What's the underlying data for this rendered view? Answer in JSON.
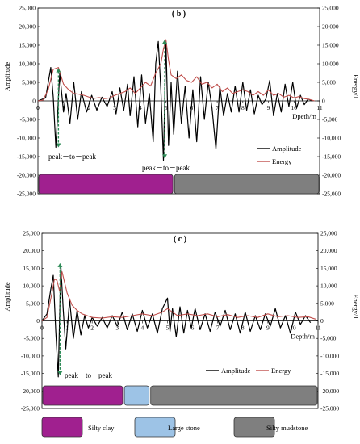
{
  "chart_data": [
    {
      "panel": "(b)",
      "type": "line",
      "title": "( b )",
      "xlabel": "Dpeth/m",
      "ylabel": "Amplitude",
      "y2label": "Energy/J",
      "xlim": [
        0,
        11
      ],
      "ylim": [
        -25000,
        25000
      ],
      "y2lim": [
        -25000,
        25000
      ],
      "xticks": [
        0,
        1,
        2,
        3,
        4,
        5,
        6,
        7,
        8,
        9,
        10,
        11
      ],
      "yticks": [
        -25000,
        -20000,
        -15000,
        -10000,
        -5000,
        0,
        5000,
        10000,
        15000,
        20000,
        25000
      ],
      "ytick_labels": [
        "-25,000",
        "-20,000",
        "-15,000",
        "-10,000",
        "-5,000",
        "0",
        "5,000",
        "10,000",
        "15,000",
        "20,000",
        "25,000"
      ],
      "series": [
        {
          "name": "Amplitude",
          "color": "#000000",
          "x": [
            0,
            0.3,
            0.5,
            0.6,
            0.7,
            0.85,
            1.0,
            1.1,
            1.25,
            1.4,
            1.55,
            1.7,
            1.9,
            2.1,
            2.3,
            2.5,
            2.7,
            2.9,
            3.05,
            3.2,
            3.35,
            3.5,
            3.6,
            3.75,
            3.9,
            4.05,
            4.2,
            4.35,
            4.5,
            4.6,
            4.7,
            4.8,
            4.9,
            5.0,
            5.1,
            5.2,
            5.3,
            5.45,
            5.6,
            5.75,
            5.9,
            6.05,
            6.2,
            6.35,
            6.5,
            6.65,
            6.8,
            6.95,
            7.1,
            7.25,
            7.4,
            7.55,
            7.7,
            7.85,
            8.0,
            8.15,
            8.3,
            8.45,
            8.6,
            8.75,
            8.9,
            9.05,
            9.2,
            9.35,
            9.5,
            9.65,
            9.8,
            9.95,
            10.1,
            10.25,
            10.4,
            10.55,
            10.7
          ],
          "values": [
            0,
            800,
            9000,
            1000,
            -12500,
            7500,
            -3000,
            2000,
            -6000,
            5000,
            -5000,
            2500,
            -3000,
            1500,
            -2500,
            1000,
            -1500,
            2500,
            -3500,
            3500,
            -2500,
            4500,
            -4000,
            6500,
            -7000,
            7000,
            -6000,
            2000,
            -11000,
            10000,
            16000,
            3000,
            -16000,
            16000,
            -12000,
            5000,
            -9000,
            8000,
            -6000,
            4000,
            -10000,
            3000,
            -11000,
            6500,
            -5000,
            5000,
            -2000,
            -13000,
            4000,
            -4000,
            2000,
            -3000,
            4000,
            -3000,
            5000,
            -2500,
            3000,
            -3500,
            1500,
            -1000,
            500,
            5500,
            -4000,
            2000,
            -3000,
            4500,
            -1500,
            5000,
            -2000,
            1500,
            -1000,
            500,
            0
          ]
        },
        {
          "name": "Energy",
          "color": "#c0504d",
          "x": [
            0,
            0.2,
            0.4,
            0.6,
            0.8,
            1.0,
            1.2,
            1.4,
            1.6,
            1.8,
            2.0,
            2.2,
            2.4,
            2.6,
            2.8,
            3.0,
            3.2,
            3.4,
            3.6,
            3.8,
            4.0,
            4.2,
            4.4,
            4.6,
            4.8,
            4.9,
            5.0,
            5.1,
            5.2,
            5.4,
            5.6,
            5.8,
            6.0,
            6.2,
            6.4,
            6.6,
            6.8,
            7.0,
            7.2,
            7.4,
            7.6,
            7.8,
            8.0,
            8.2,
            8.4,
            8.6,
            8.8,
            9.0,
            9.2,
            9.4,
            9.6,
            9.8,
            10.0,
            10.2,
            10.4,
            10.6,
            10.8
          ],
          "values": [
            0,
            200,
            3000,
            8500,
            9000,
            4500,
            3000,
            2000,
            1800,
            1500,
            1000,
            700,
            900,
            600,
            800,
            1500,
            2000,
            2500,
            3500,
            2000,
            3500,
            5000,
            4000,
            7500,
            10000,
            14000,
            16500,
            11000,
            7000,
            6000,
            7000,
            5500,
            5000,
            6500,
            4500,
            5000,
            3500,
            4500,
            2500,
            3500,
            2000,
            2500,
            3000,
            2500,
            1500,
            2500,
            1500,
            3000,
            1500,
            2000,
            1000,
            1500,
            800,
            1200,
            600,
            400,
            0
          ]
        }
      ],
      "annotations": [
        "peak－to－peak",
        "peak－to－peak"
      ],
      "layers": [
        {
          "name": "Silty clay",
          "color": "#a0208f",
          "from": 0,
          "to": 5.3
        },
        {
          "name": "Silty mudstone",
          "color": "#7f7f7f",
          "from": 5.3,
          "to": 11
        }
      ],
      "legend": "bottom-right",
      "grid": false
    },
    {
      "panel": "(c)",
      "type": "line",
      "title": "( c )",
      "xlabel": "Depth/m",
      "ylabel": "Amplitude",
      "y2label": "Energy/J",
      "xlim": [
        0,
        11
      ],
      "ylim": [
        -25000,
        25000
      ],
      "y2lim": [
        -25000,
        25000
      ],
      "xticks": [
        0,
        1,
        2,
        3,
        4,
        5,
        6,
        7,
        8,
        9,
        10,
        11
      ],
      "yticks": [
        -25000,
        -20000,
        -15000,
        -10000,
        -5000,
        0,
        5000,
        10000,
        15000,
        20000,
        25000
      ],
      "ytick_labels": [
        "-25,000",
        "-20,000",
        "-15,000",
        "-10,000",
        "-5,000",
        "0",
        "5,000",
        "10,000",
        "15,000",
        "20,000",
        "25,000"
      ],
      "series": [
        {
          "name": "Amplitude",
          "color": "#000000",
          "x": [
            0,
            0.2,
            0.35,
            0.45,
            0.55,
            0.65,
            0.75,
            0.85,
            0.95,
            1.1,
            1.25,
            1.4,
            1.55,
            1.7,
            1.85,
            2.0,
            2.2,
            2.4,
            2.6,
            2.8,
            3.0,
            3.2,
            3.4,
            3.6,
            3.8,
            4.0,
            4.2,
            4.4,
            4.6,
            4.8,
            5.0,
            5.1,
            5.2,
            5.35,
            5.5,
            5.65,
            5.8,
            5.95,
            6.1,
            6.3,
            6.5,
            6.7,
            6.9,
            7.1,
            7.3,
            7.5,
            7.7,
            7.9,
            8.1,
            8.3,
            8.5,
            8.7,
            8.9,
            9.1,
            9.3,
            9.5,
            9.7,
            9.9,
            10.1,
            10.3,
            10.5,
            10.7
          ],
          "values": [
            0,
            2000,
            9000,
            13000,
            -3000,
            -16000,
            16000,
            3000,
            -8000,
            6000,
            -5000,
            3000,
            -4000,
            1500,
            -2000,
            1000,
            -1500,
            1000,
            -2000,
            1500,
            -1500,
            2500,
            -2500,
            2000,
            -3000,
            3000,
            -2000,
            2000,
            -3500,
            3500,
            6500,
            -3000,
            3500,
            -4500,
            4000,
            -3500,
            3000,
            -2000,
            3500,
            -2500,
            2000,
            -3000,
            2500,
            -1500,
            3000,
            -2500,
            2000,
            -3500,
            2500,
            -3000,
            1500,
            -2500,
            2000,
            -1500,
            3500,
            -2000,
            1500,
            -3500,
            2500,
            -1000,
            1500,
            -500
          ]
        },
        {
          "name": "Energy",
          "color": "#c0504d",
          "x": [
            0,
            0.2,
            0.4,
            0.5,
            0.6,
            0.7,
            0.8,
            0.9,
            1.0,
            1.2,
            1.4,
            1.6,
            1.8,
            2.0,
            2.4,
            2.8,
            3.2,
            3.6,
            4.0,
            4.4,
            4.8,
            5.0,
            5.2,
            5.4,
            5.8,
            6.2,
            6.6,
            7.0,
            7.4,
            7.8,
            8.2,
            8.6,
            9.0,
            9.4,
            9.8,
            10.2,
            10.6,
            10.9
          ],
          "values": [
            0,
            1000,
            8000,
            12000,
            11500,
            8500,
            14000,
            11000,
            8000,
            4500,
            3000,
            2000,
            1500,
            1000,
            800,
            1200,
            1000,
            1500,
            2000,
            1500,
            2500,
            3500,
            2500,
            1500,
            2000,
            1500,
            2000,
            1200,
            1800,
            1000,
            1500,
            1000,
            2000,
            1200,
            1500,
            1000,
            1200,
            500
          ]
        }
      ],
      "annotations": [
        "peak－to－peak"
      ],
      "layers": [
        {
          "name": "Silty clay",
          "color": "#a0208f",
          "from": 0,
          "to": 3.25
        },
        {
          "name": "Large stone",
          "color": "#9dc3e6",
          "from": 3.25,
          "to": 4.3
        },
        {
          "name": "Silty mudstone",
          "color": "#7f7f7f",
          "from": 4.3,
          "to": 11
        }
      ],
      "legend": "bottom-right",
      "grid": false
    }
  ],
  "strata_legend": [
    {
      "name": "Silty clay",
      "color": "#a0208f"
    },
    {
      "name": "Large stone",
      "color": "#9dc3e6"
    },
    {
      "name": "Silty mudstone",
      "color": "#7f7f7f"
    }
  ]
}
